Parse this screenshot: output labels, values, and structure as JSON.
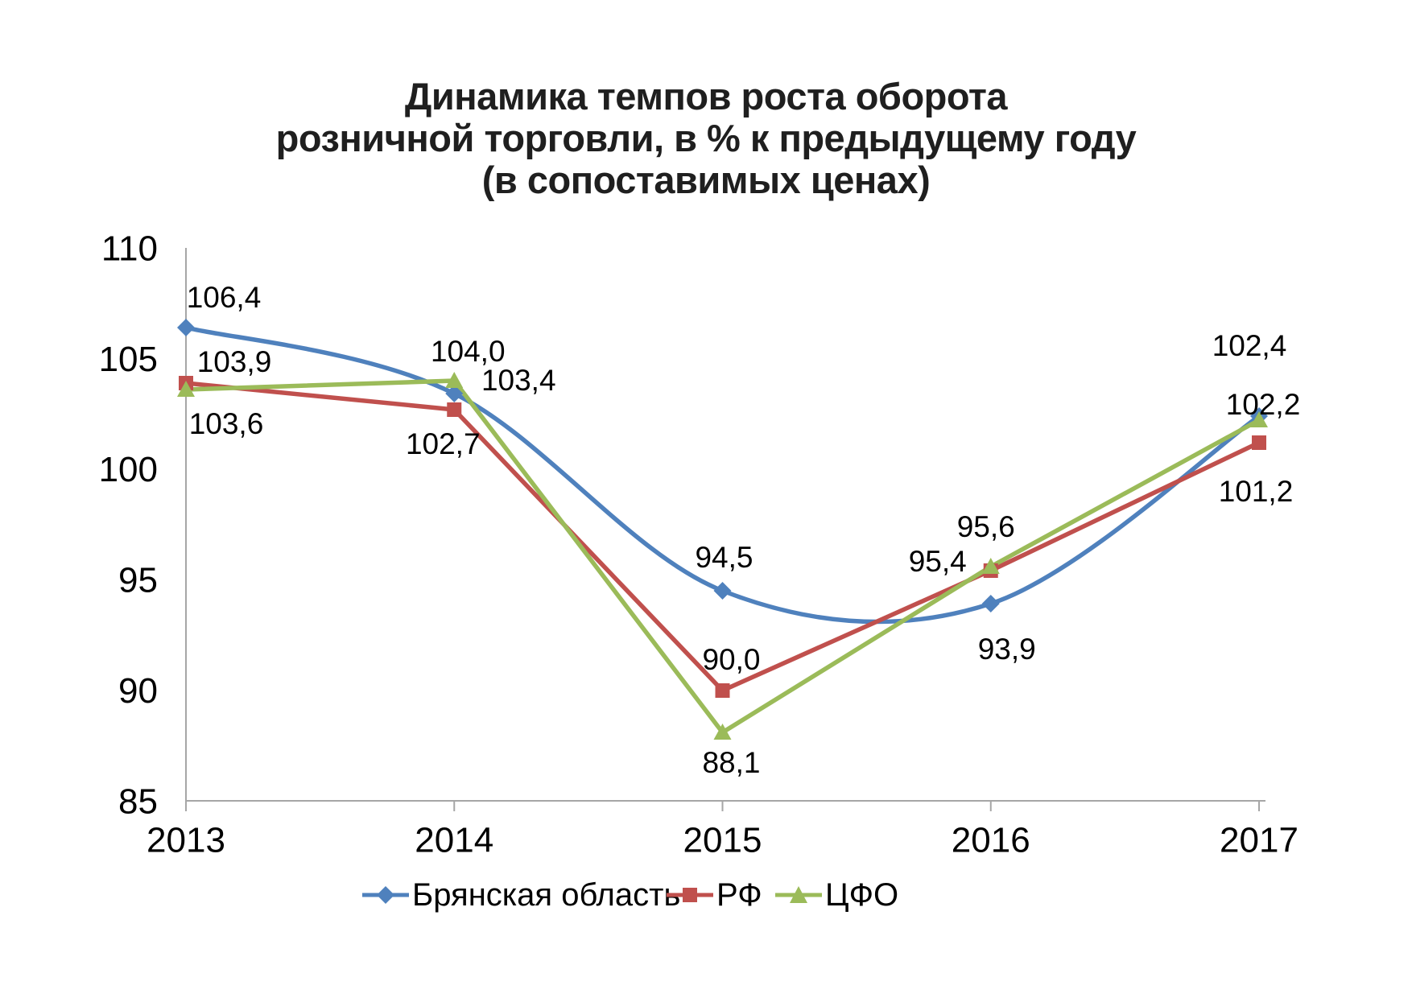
{
  "title": {
    "line1": "Динамика темпов роста оборота",
    "line2": "розничной торговли, в % к предыдущему году",
    "line3": "(в сопоставимых ценах)"
  },
  "chart_data": {
    "type": "line",
    "categories": [
      "2013",
      "2014",
      "2015",
      "2016",
      "2017"
    ],
    "series": [
      {
        "name": "Брянская область",
        "values": [
          106.4,
          103.4,
          94.5,
          93.9,
          102.4
        ],
        "labels": [
          "106,4",
          "103,4",
          "94,5",
          "93,9",
          "102,4"
        ],
        "color": "#4F81BD",
        "marker": "diamond",
        "smooth": true,
        "label_offsets": [
          [
            47,
            -38
          ],
          [
            80,
            -17
          ],
          [
            2,
            -42
          ],
          [
            20,
            56
          ],
          [
            -12,
            -88
          ]
        ]
      },
      {
        "name": "РФ",
        "values": [
          103.9,
          102.7,
          90.0,
          95.4,
          101.2
        ],
        "labels": [
          "103,9",
          "102,7",
          "90,0",
          "95,4",
          "101,2"
        ],
        "color": "#C0504D",
        "marker": "square",
        "smooth": false,
        "label_offsets": [
          [
            60,
            -27
          ],
          [
            -14,
            42
          ],
          [
            11,
            -39
          ],
          [
            -66,
            -12
          ],
          [
            -4,
            60
          ]
        ]
      },
      {
        "name": "ЦФО",
        "values": [
          103.6,
          104.0,
          88.1,
          95.6,
          102.2
        ],
        "labels": [
          "103,6",
          "104,0",
          "88,1",
          "95,6",
          "102,2"
        ],
        "color": "#9BBB59",
        "marker": "triangle",
        "smooth": false,
        "label_offsets": [
          [
            50,
            42
          ],
          [
            17,
            -37
          ],
          [
            11,
            37
          ],
          [
            -6,
            -50
          ],
          [
            5,
            -20
          ]
        ]
      }
    ],
    "y_ticks": [
      110,
      105,
      100,
      95,
      90,
      85
    ],
    "ylim": [
      85,
      110
    ],
    "xlabel": "",
    "ylabel": "",
    "grid": false,
    "legend_position": "bottom",
    "axis_color": "#A6A6A6",
    "text_color": "#000000"
  }
}
